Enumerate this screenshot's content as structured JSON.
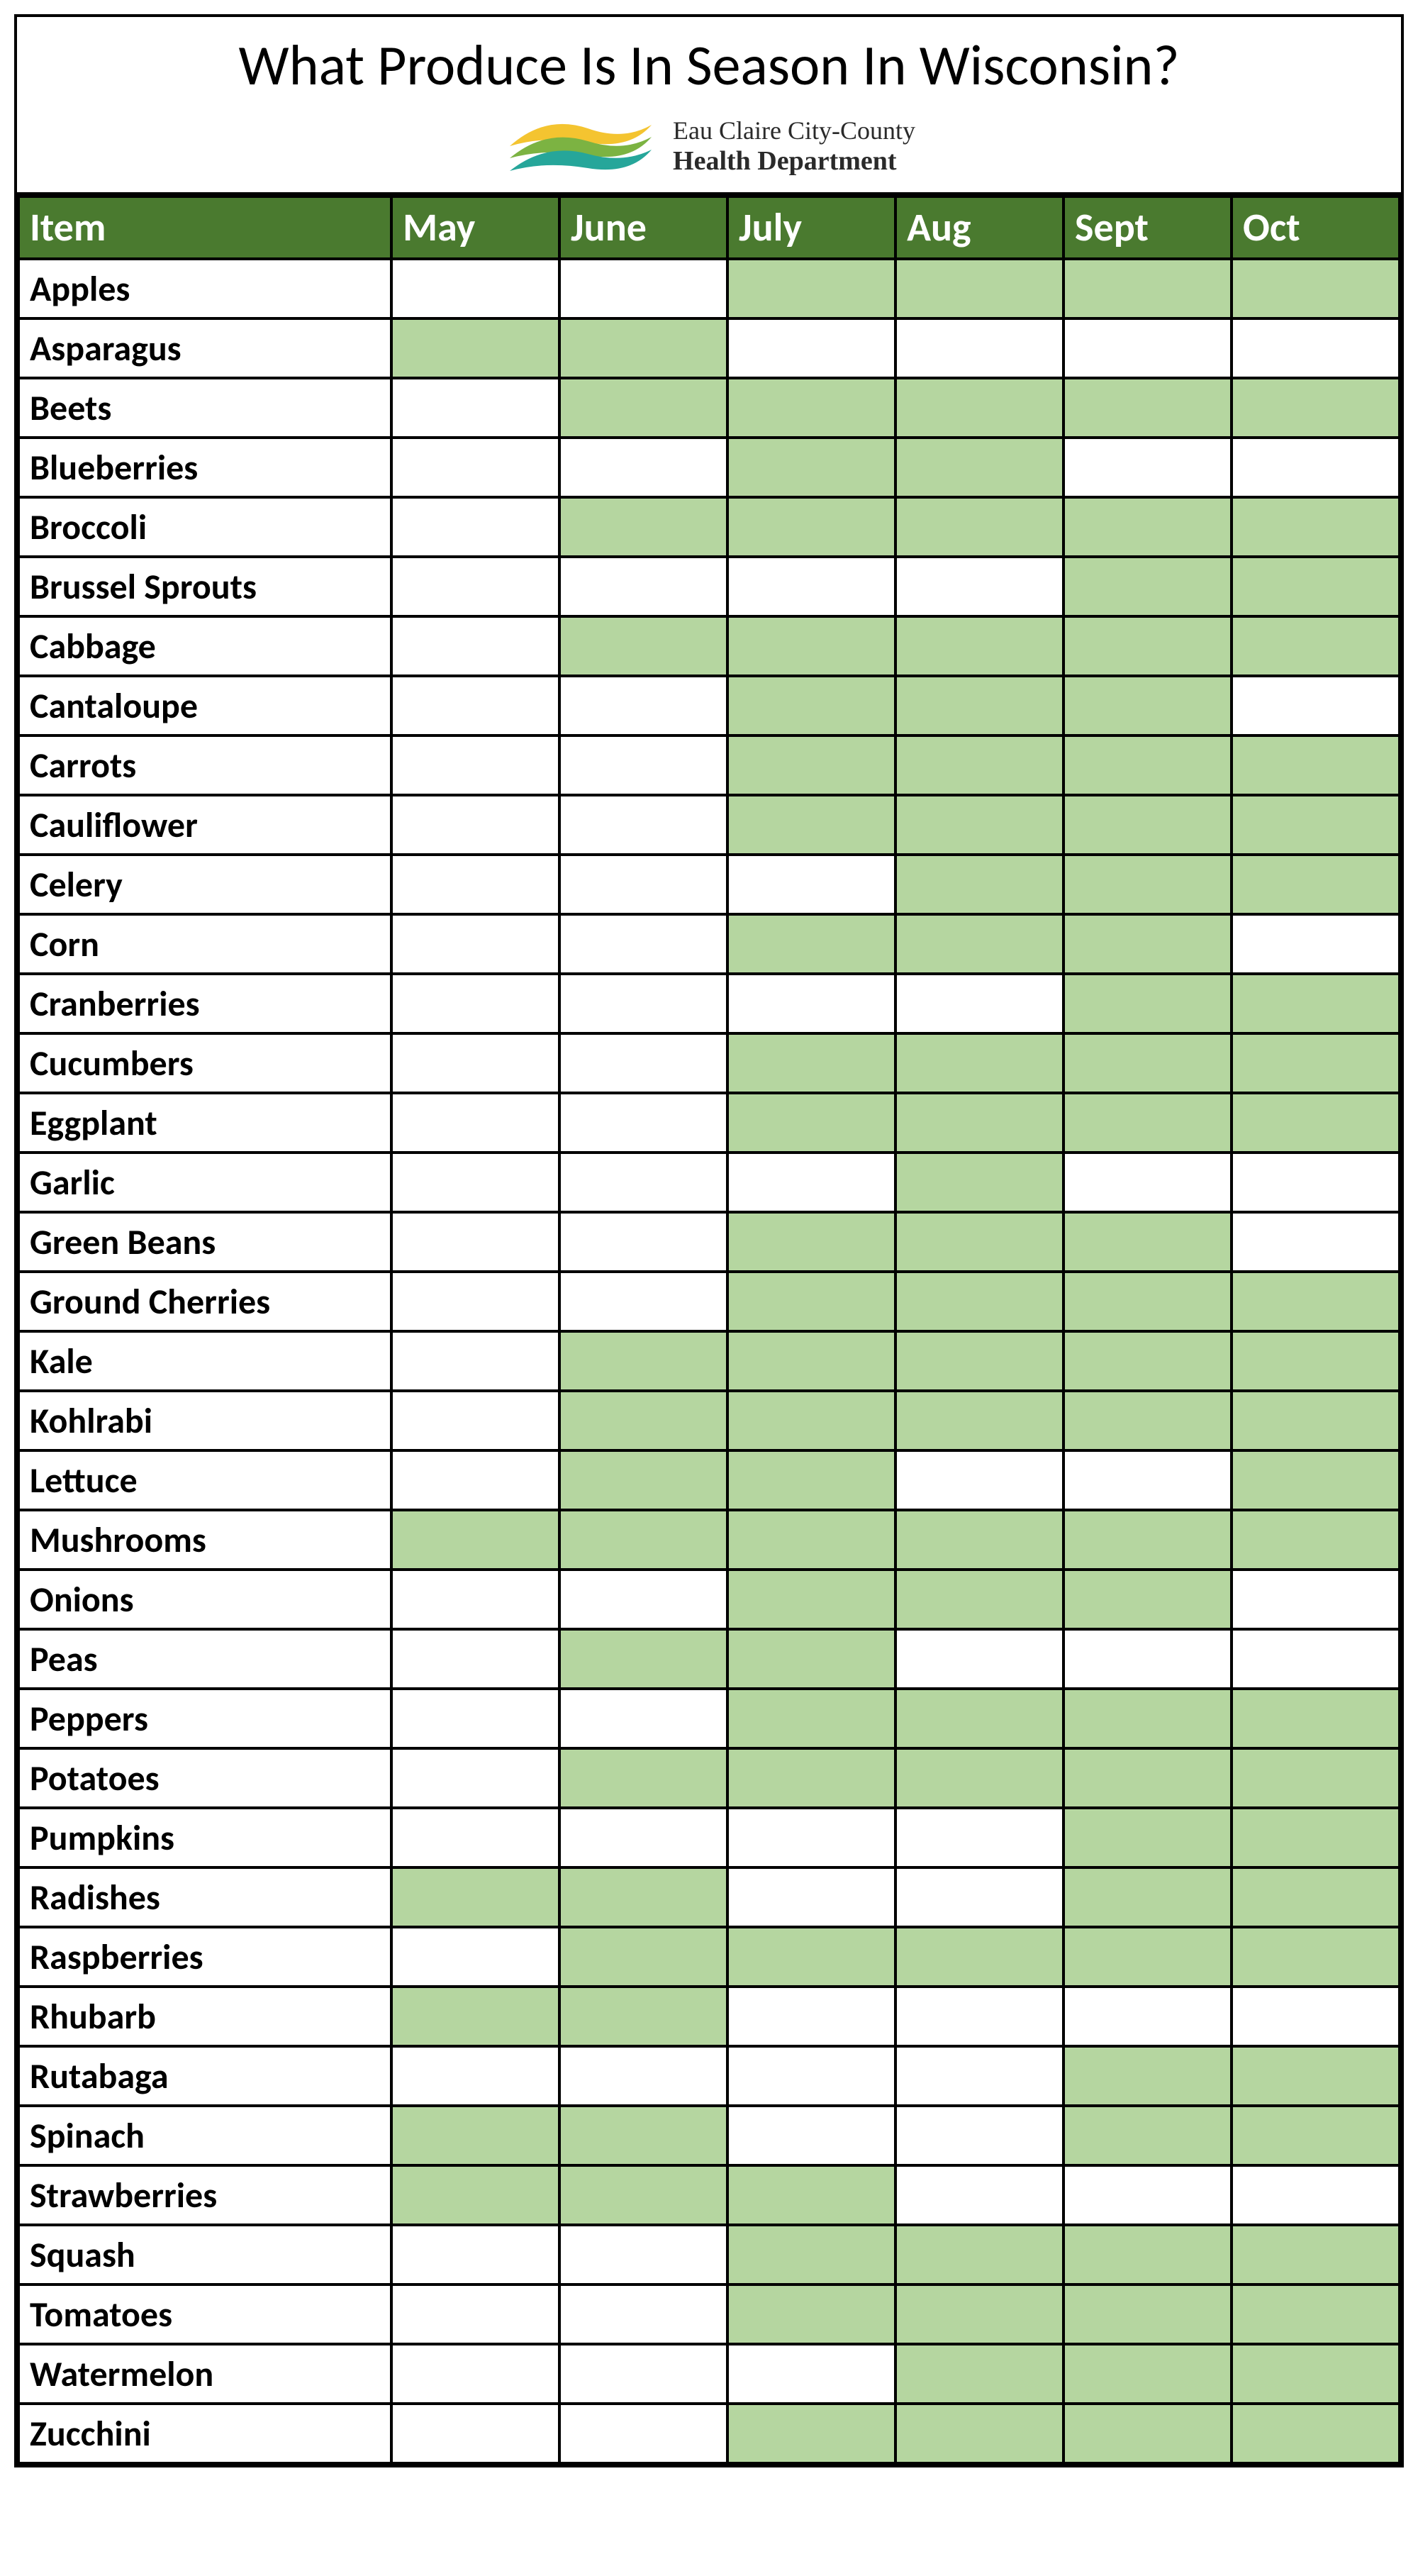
{
  "title": "What Produce Is In Season In Wisconsin?",
  "logo": {
    "line1": "Eau Claire City-County",
    "line2": "Health Department",
    "swoosh_colors": [
      "#f4c430",
      "#7cb342",
      "#26a69a"
    ]
  },
  "table": {
    "header_bg": "#4a7a2f",
    "header_fg": "#ffffff",
    "in_season_bg": "#b5d6a0",
    "out_season_bg": "#ffffff",
    "item_bg": "#ffffff",
    "columns": [
      "Item",
      "May",
      "June",
      "July",
      "Aug",
      "Sept",
      "Oct"
    ],
    "rows": [
      {
        "item": "Apples",
        "months": [
          0,
          0,
          1,
          1,
          1,
          1
        ]
      },
      {
        "item": "Asparagus",
        "months": [
          1,
          1,
          0,
          0,
          0,
          0
        ]
      },
      {
        "item": "Beets",
        "months": [
          0,
          1,
          1,
          1,
          1,
          1
        ]
      },
      {
        "item": "Blueberries",
        "months": [
          0,
          0,
          1,
          1,
          0,
          0
        ]
      },
      {
        "item": "Broccoli",
        "months": [
          0,
          1,
          1,
          1,
          1,
          1
        ]
      },
      {
        "item": "Brussel Sprouts",
        "months": [
          0,
          0,
          0,
          0,
          1,
          1
        ]
      },
      {
        "item": "Cabbage",
        "months": [
          0,
          1,
          1,
          1,
          1,
          1
        ]
      },
      {
        "item": "Cantaloupe",
        "months": [
          0,
          0,
          1,
          1,
          1,
          0
        ]
      },
      {
        "item": "Carrots",
        "months": [
          0,
          0,
          1,
          1,
          1,
          1
        ]
      },
      {
        "item": "Cauliflower",
        "months": [
          0,
          0,
          1,
          1,
          1,
          1
        ]
      },
      {
        "item": "Celery",
        "months": [
          0,
          0,
          0,
          1,
          1,
          1
        ]
      },
      {
        "item": "Corn",
        "months": [
          0,
          0,
          1,
          1,
          1,
          0
        ]
      },
      {
        "item": "Cranberries",
        "months": [
          0,
          0,
          0,
          0,
          1,
          1
        ]
      },
      {
        "item": "Cucumbers",
        "months": [
          0,
          0,
          1,
          1,
          1,
          1
        ]
      },
      {
        "item": "Eggplant",
        "months": [
          0,
          0,
          1,
          1,
          1,
          1
        ]
      },
      {
        "item": "Garlic",
        "months": [
          0,
          0,
          0,
          1,
          0,
          0
        ]
      },
      {
        "item": "Green Beans",
        "months": [
          0,
          0,
          1,
          1,
          1,
          0
        ]
      },
      {
        "item": "Ground Cherries",
        "months": [
          0,
          0,
          1,
          1,
          1,
          1
        ]
      },
      {
        "item": "Kale",
        "months": [
          0,
          1,
          1,
          1,
          1,
          1
        ]
      },
      {
        "item": "Kohlrabi",
        "months": [
          0,
          1,
          1,
          1,
          1,
          1
        ]
      },
      {
        "item": "Lettuce",
        "months": [
          0,
          1,
          1,
          0,
          0,
          1
        ]
      },
      {
        "item": "Mushrooms",
        "months": [
          1,
          1,
          1,
          1,
          1,
          1
        ]
      },
      {
        "item": "Onions",
        "months": [
          0,
          0,
          1,
          1,
          1,
          0
        ]
      },
      {
        "item": "Peas",
        "months": [
          0,
          1,
          1,
          0,
          0,
          0
        ]
      },
      {
        "item": "Peppers",
        "months": [
          0,
          0,
          1,
          1,
          1,
          1
        ]
      },
      {
        "item": "Potatoes",
        "months": [
          0,
          1,
          1,
          1,
          1,
          1
        ]
      },
      {
        "item": "Pumpkins",
        "months": [
          0,
          0,
          0,
          0,
          1,
          1
        ]
      },
      {
        "item": "Radishes",
        "months": [
          1,
          1,
          0,
          0,
          1,
          1
        ]
      },
      {
        "item": "Raspberries",
        "months": [
          0,
          1,
          1,
          1,
          1,
          1
        ]
      },
      {
        "item": "Rhubarb",
        "months": [
          1,
          1,
          0,
          0,
          0,
          0
        ]
      },
      {
        "item": "Rutabaga",
        "months": [
          0,
          0,
          0,
          0,
          1,
          1
        ]
      },
      {
        "item": "Spinach",
        "months": [
          1,
          1,
          0,
          0,
          1,
          1
        ]
      },
      {
        "item": "Strawberries",
        "months": [
          1,
          1,
          1,
          0,
          0,
          0
        ]
      },
      {
        "item": "Squash",
        "months": [
          0,
          0,
          1,
          1,
          1,
          1
        ]
      },
      {
        "item": "Tomatoes",
        "months": [
          0,
          0,
          1,
          1,
          1,
          1
        ]
      },
      {
        "item": "Watermelon",
        "months": [
          0,
          0,
          0,
          1,
          1,
          1
        ]
      },
      {
        "item": "Zucchini",
        "months": [
          0,
          0,
          1,
          1,
          1,
          1
        ]
      }
    ]
  }
}
